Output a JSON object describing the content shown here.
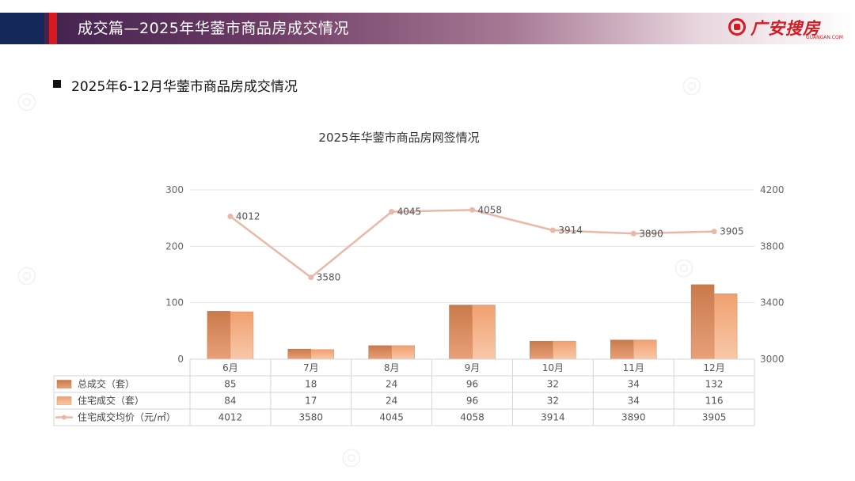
{
  "header": {
    "title": "成交篇—2025年华蓥市商品房成交情况",
    "logo_text": "广安搜房",
    "logo_sub": "GUANGAN.COM"
  },
  "subtitle": "2025年6-12月华蓥市商品房成交情况",
  "colors": {
    "header_navy": "#14285a",
    "header_red": "#d71920",
    "bar_total": "#d9834a",
    "bar_residential": "#f4a06a",
    "line_price": "#e9b8a8"
  },
  "chart_data": {
    "type": "bar",
    "title": "2025年华蓥市商品房网签情况",
    "categories": [
      "6月",
      "7月",
      "8月",
      "9月",
      "10月",
      "11月",
      "12月"
    ],
    "series": [
      {
        "name": "总成交（套）",
        "type": "bar",
        "axis": "left",
        "values": [
          85,
          18,
          24,
          96,
          32,
          34,
          132
        ]
      },
      {
        "name": "住宅成交（套）",
        "type": "bar",
        "axis": "left",
        "values": [
          84,
          17,
          24,
          96,
          32,
          34,
          116
        ]
      },
      {
        "name": "住宅成交均价（元/㎡）",
        "type": "line",
        "axis": "right",
        "values": [
          4012,
          3580,
          4045,
          4058,
          3914,
          3890,
          3905
        ]
      }
    ],
    "left_axis": {
      "ylim": [
        0,
        300
      ],
      "ticks": [
        "0",
        "100",
        "200",
        "300"
      ]
    },
    "right_axis": {
      "ylim": [
        3000,
        4200
      ],
      "ticks": [
        "3000",
        "3400",
        "3800",
        "4200"
      ]
    },
    "grid": true,
    "legend": "data-table"
  }
}
